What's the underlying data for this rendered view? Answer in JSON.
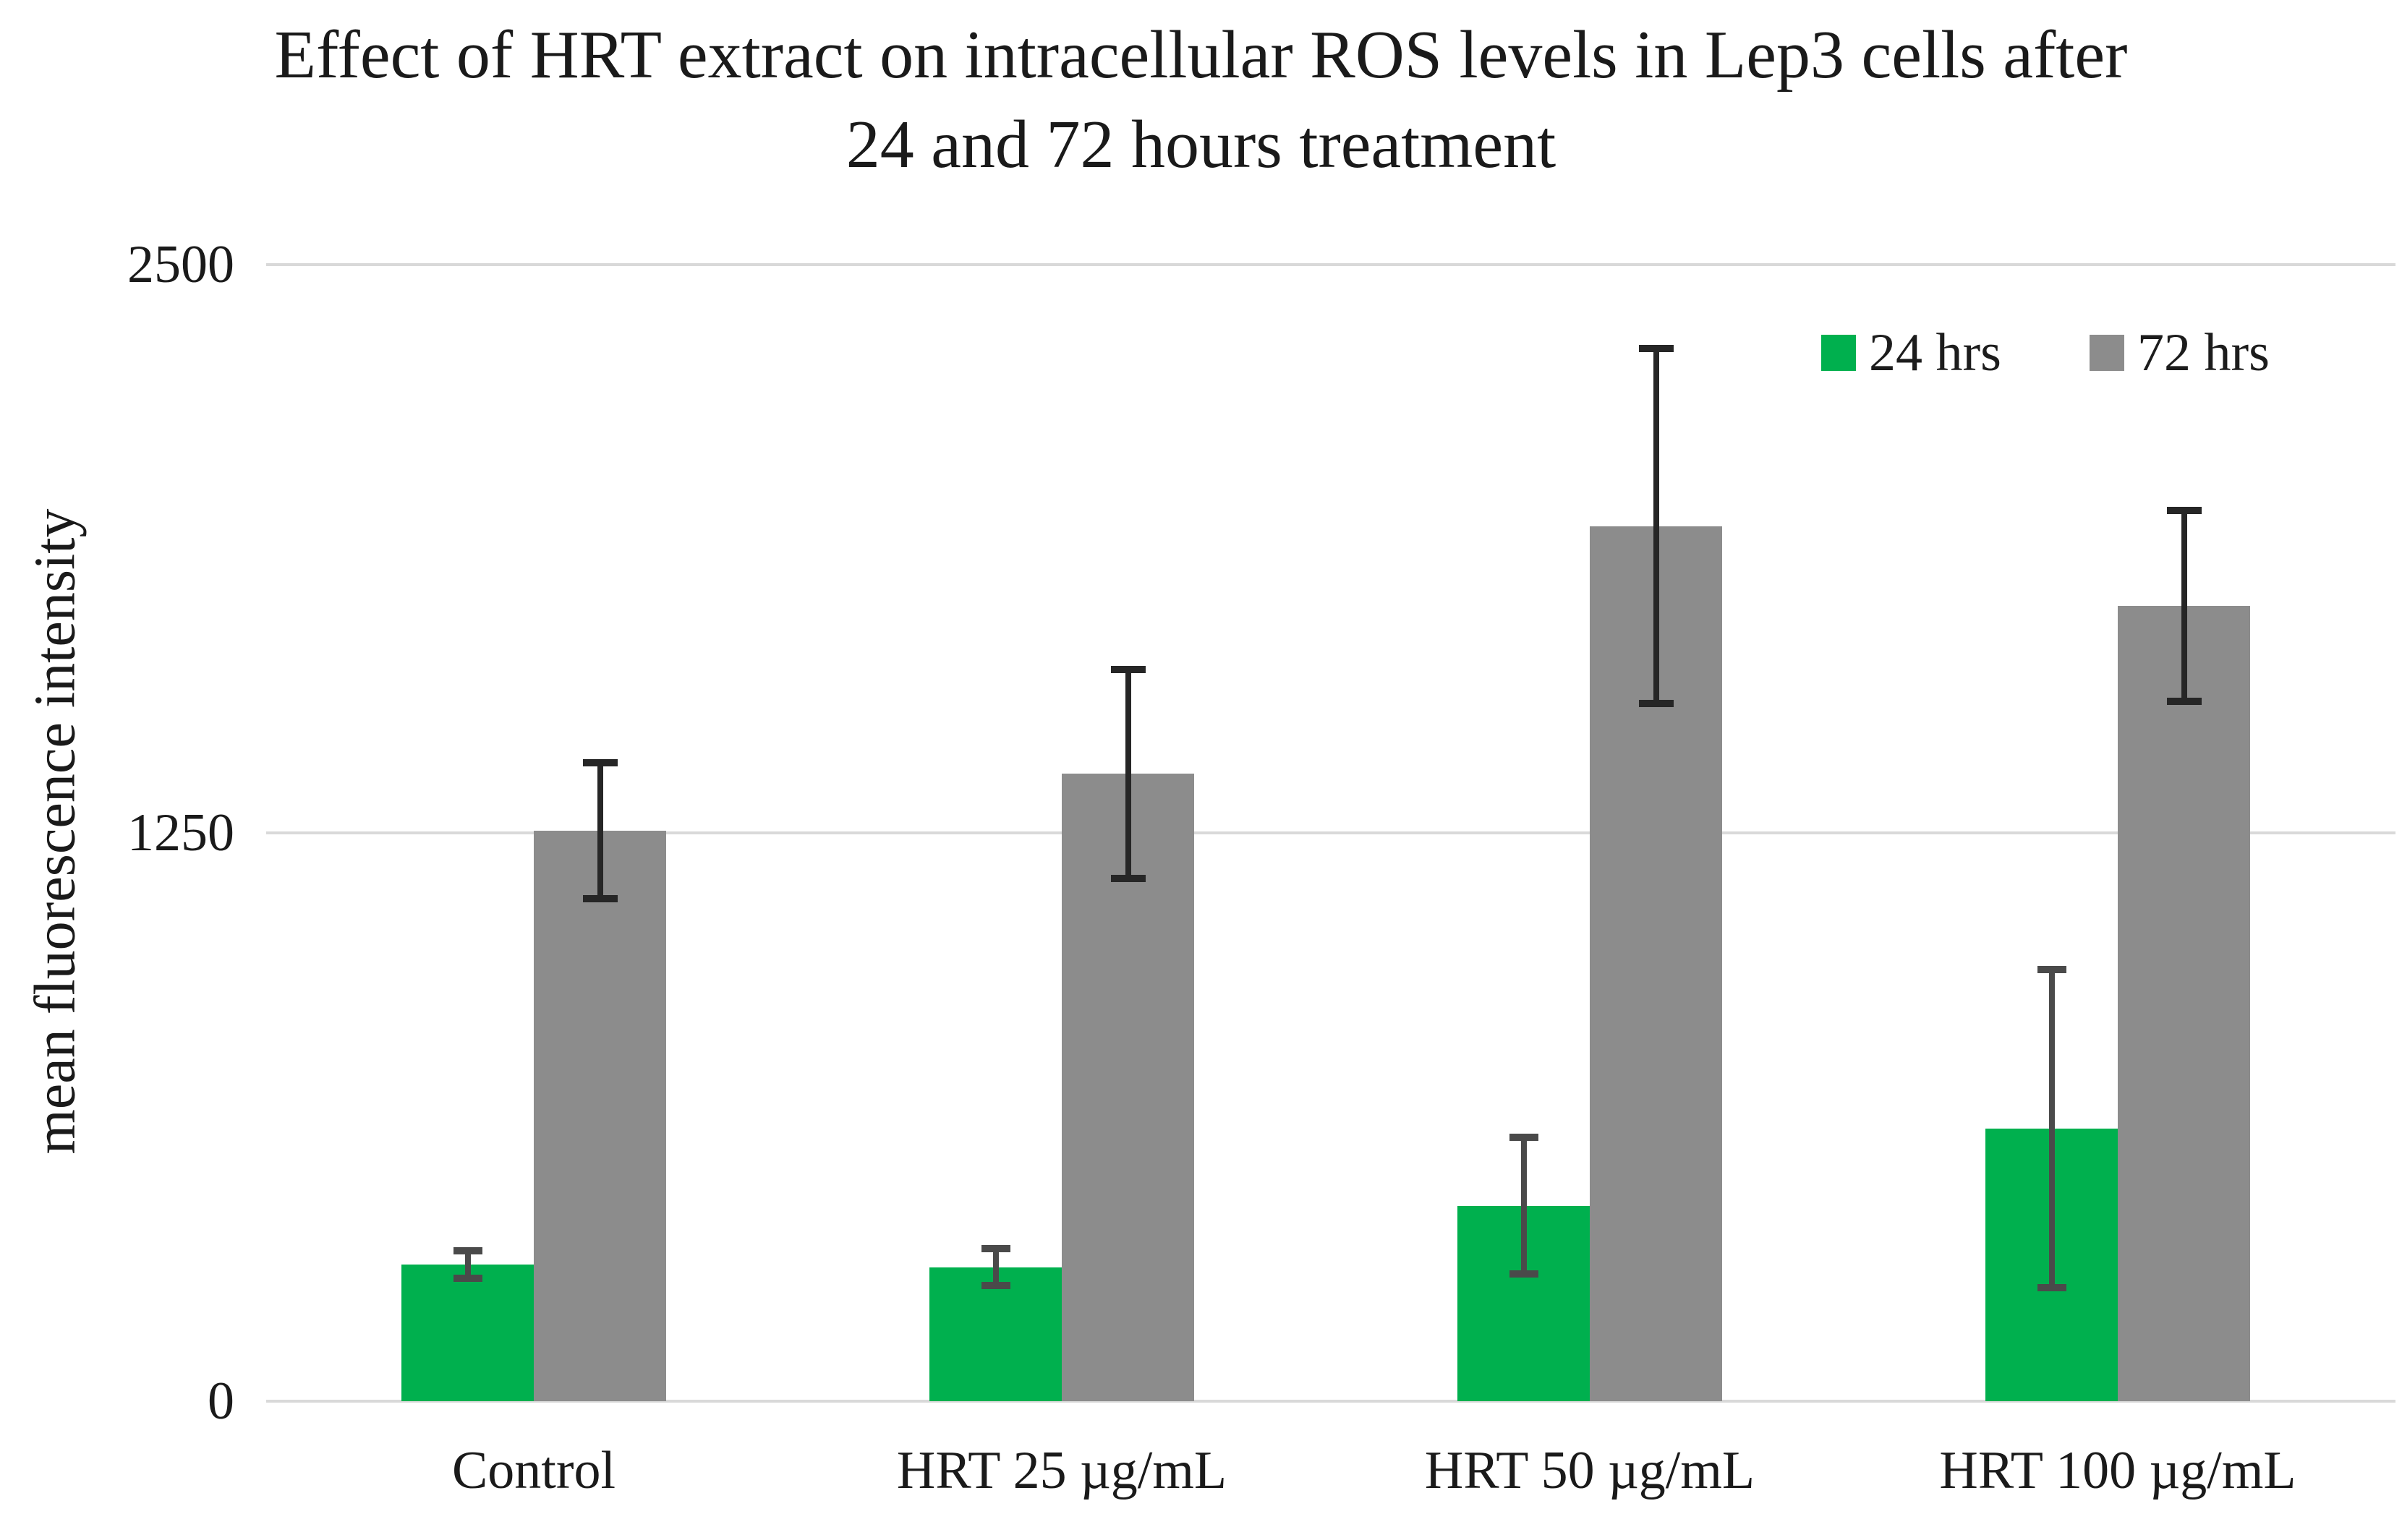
{
  "title": {
    "line1": "Effect of HRT extract on intracellular ROS levels in Lep3 cells after",
    "line2": "24 and 72 hours treatment"
  },
  "y_axis": {
    "label": "mean fluorescence intensity"
  },
  "legend": {
    "items": [
      {
        "label": "24 hrs",
        "color": "#00B04E"
      },
      {
        "label": "72 hrs",
        "color": "#8C8C8C"
      }
    ]
  },
  "chart_data": {
    "type": "bar",
    "title": "Effect of HRT extract on intracellular ROS levels in Lep3 cells after 24 and 72 hours treatment",
    "xlabel": "",
    "ylabel": "mean fluorescence intensity",
    "categories": [
      "Control",
      "HRT 25 µg/mL",
      "HRT 50 µg/mL",
      "HRT 100 µg/mL"
    ],
    "series": [
      {
        "name": "24 hrs",
        "color": "#00B04E",
        "error_color": "#4a4a4a",
        "values": [
          300,
          295,
          430,
          600
        ],
        "errors": [
          30,
          40,
          150,
          350
        ]
      },
      {
        "name": "72 hrs",
        "color": "#8C8C8C",
        "error_color": "#262626",
        "values": [
          1255,
          1380,
          1925,
          1750
        ],
        "errors": [
          150,
          230,
          390,
          210
        ]
      }
    ],
    "ylim": [
      0,
      2500
    ],
    "yticks": [
      0,
      1250,
      2500
    ],
    "grid": true,
    "legend_position": "top-right"
  }
}
